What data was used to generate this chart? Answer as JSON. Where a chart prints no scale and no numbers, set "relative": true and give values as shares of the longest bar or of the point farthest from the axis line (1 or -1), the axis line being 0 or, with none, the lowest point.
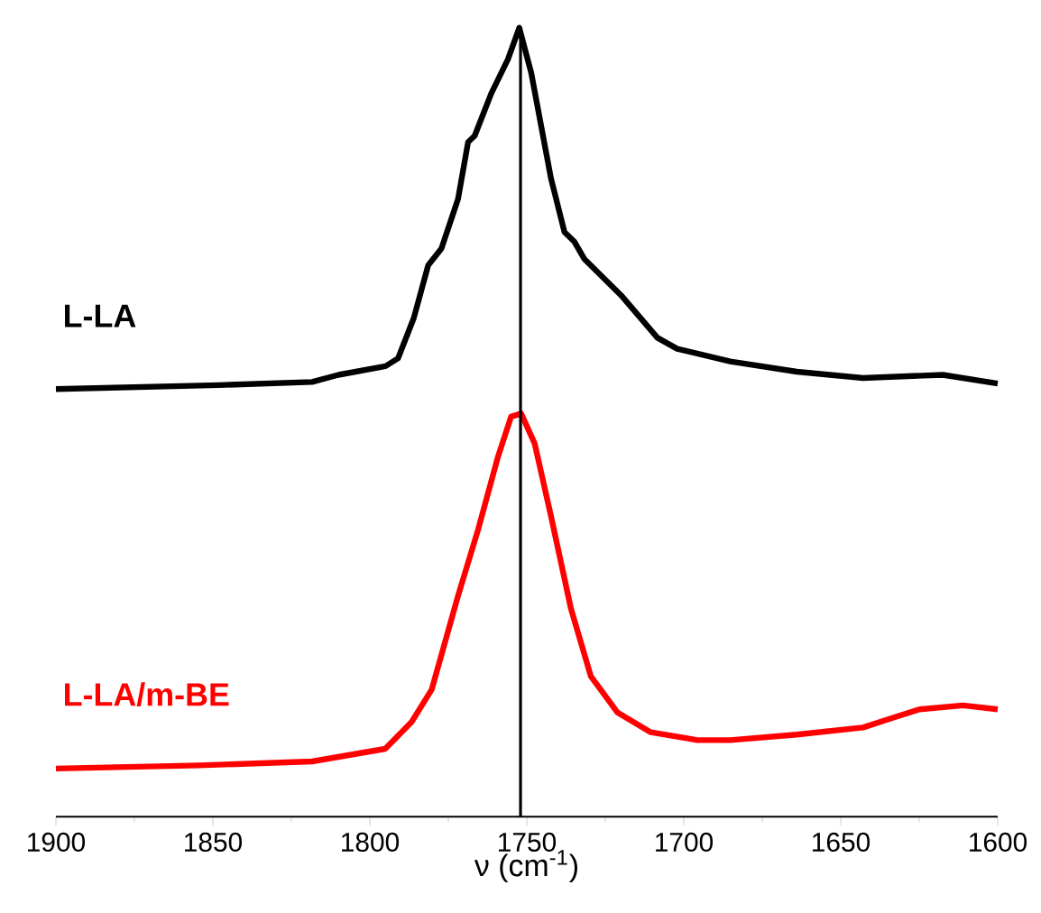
{
  "chart_data": {
    "type": "line",
    "relative": true,
    "xlabel": "ν (cm$^{-1}$)",
    "xlim": [
      1900,
      1600
    ],
    "xticks": [
      1900,
      1850,
      1800,
      1750,
      1700,
      1650,
      1600
    ],
    "tick_labels": "x",
    "line_style": "solid",
    "marker": "none",
    "ref_lines": [
      {
        "axis": "x",
        "value": 1752,
        "color": "#000000"
      }
    ],
    "series": [
      {
        "name": "L-LA",
        "color": "#000000",
        "x": [
          1900,
          1848,
          1818.4,
          1810,
          1795,
          1791,
          1786,
          1781.4,
          1777.2,
          1771.9,
          1768.7,
          1766.6,
          1761.3,
          1756,
          1752.4,
          1748.6,
          1742.3,
          1738,
          1734.9,
          1731.7,
          1720,
          1708.4,
          1702.1,
          1685.2,
          1664,
          1642.9,
          1617.5,
          1600
        ],
        "values": [
          0.542,
          0.547,
          0.551,
          0.56,
          0.571,
          0.581,
          0.632,
          0.699,
          0.72,
          0.783,
          0.855,
          0.863,
          0.917,
          0.96,
          1.0,
          0.943,
          0.809,
          0.741,
          0.729,
          0.707,
          0.661,
          0.607,
          0.593,
          0.577,
          0.564,
          0.556,
          0.56,
          0.549
        ]
      },
      {
        "name": "L-LA/m-BE",
        "color": "#ff0000",
        "x": [
          1900,
          1854.4,
          1818.4,
          1795.1,
          1786.7,
          1780.3,
          1771.9,
          1765.5,
          1759.2,
          1755,
          1751.8,
          1747.5,
          1742.3,
          1735.9,
          1729.6,
          1721.1,
          1710.5,
          1695.7,
          1685.2,
          1664,
          1642.9,
          1634.4,
          1624.9,
          1611.1,
          1600
        ],
        "values": [
          0.061,
          0.065,
          0.07,
          0.086,
          0.12,
          0.161,
          0.28,
          0.364,
          0.456,
          0.507,
          0.511,
          0.473,
          0.381,
          0.263,
          0.178,
          0.132,
          0.107,
          0.097,
          0.097,
          0.104,
          0.113,
          0.124,
          0.136,
          0.141,
          0.136
        ]
      }
    ]
  }
}
